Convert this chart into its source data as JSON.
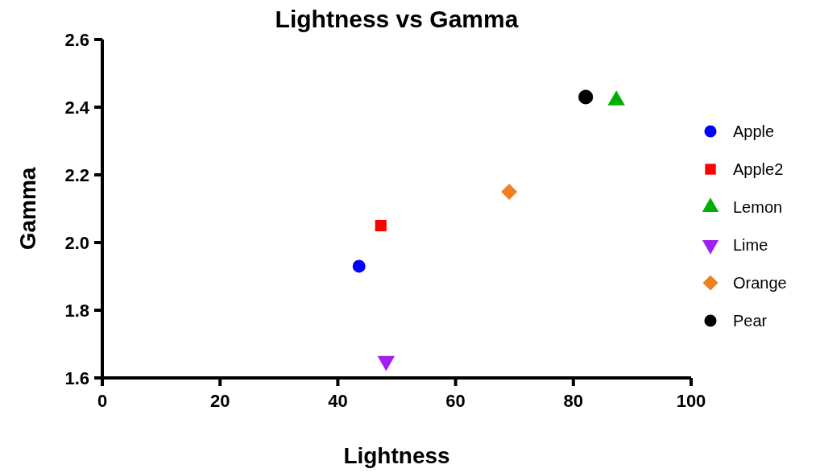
{
  "chart_data": {
    "type": "scatter",
    "title": "Lightness vs Gamma",
    "xlabel": "Lightness",
    "ylabel": "Gamma",
    "xlim": [
      0,
      100
    ],
    "xticks": [
      0,
      20,
      40,
      60,
      80,
      100
    ],
    "ylim": [
      1.6,
      2.6
    ],
    "yticks": [
      1.6,
      1.8,
      {
        "value": 2,
        "label": "2.0"
      },
      2.2,
      2.4,
      2.6
    ],
    "grid": false,
    "legend": "right",
    "series": [
      {
        "name": "Apple",
        "color": "#0000ff",
        "marker": "circle",
        "x": [
          43.6
        ],
        "values": [
          1.93
        ]
      },
      {
        "name": "Apple2",
        "color": "#ff0000",
        "marker": "square",
        "x": [
          47.3
        ],
        "values": [
          2.05
        ]
      },
      {
        "name": "Lemon",
        "color": "#00b000",
        "marker": "triangle",
        "x": [
          87.3
        ],
        "values": [
          2.42
        ]
      },
      {
        "name": "Lime",
        "color": "#a020f0",
        "marker": "triangle-down",
        "x": [
          48.2
        ],
        "values": [
          1.65
        ]
      },
      {
        "name": "Orange",
        "color": "#f08020",
        "marker": "diamond",
        "x": [
          69.1
        ],
        "values": [
          2.15
        ]
      },
      {
        "name": "Pear",
        "color": "#000000",
        "marker": "circle",
        "x": [
          82.1
        ],
        "values": [
          2.43
        ]
      }
    ]
  }
}
